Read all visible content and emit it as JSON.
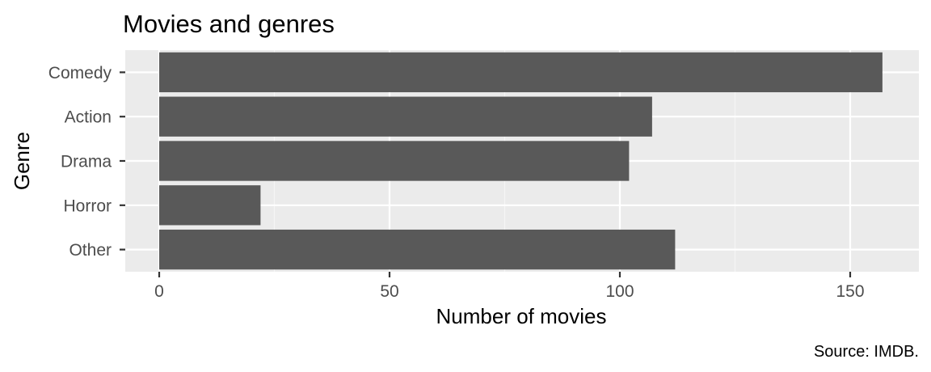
{
  "chart_data": {
    "type": "bar",
    "orientation": "horizontal",
    "title": "Movies and genres",
    "xlabel": "Number of movies",
    "ylabel": "Genre",
    "caption": "Source: IMDB.",
    "categories": [
      "Comedy",
      "Action",
      "Drama",
      "Horror",
      "Other"
    ],
    "values": [
      157,
      107,
      102,
      22,
      112
    ],
    "xlim": [
      0,
      165
    ],
    "x_ticks": [
      0,
      50,
      100,
      150
    ],
    "x_minor_ticks": [
      25,
      75,
      125
    ],
    "grid": true,
    "legend": "none",
    "colors": {
      "bar": "#595959",
      "panel_background": "#ebebeb",
      "grid_major": "#ffffff",
      "grid_minor": "#f5f5f5",
      "tick": "#333333"
    }
  }
}
